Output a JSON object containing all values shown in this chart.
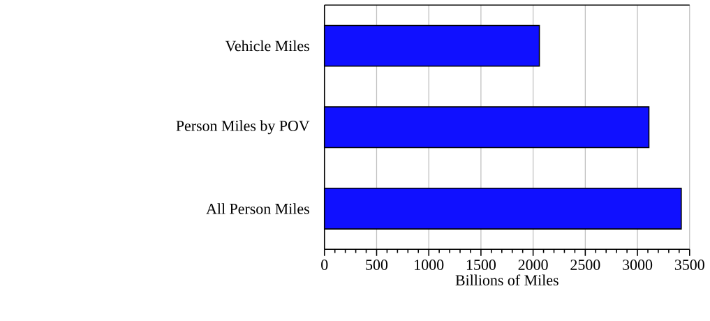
{
  "chart_data": {
    "type": "bar",
    "orientation": "horizontal",
    "categories": [
      "Vehicle Miles",
      "Person Miles by POV",
      "All Person Miles"
    ],
    "values": [
      2060,
      3110,
      3420
    ],
    "color": "#1010ff",
    "xlabel": "Billions of Miles",
    "xlim": [
      0,
      3500
    ],
    "xticks": [
      0,
      500,
      1000,
      1500,
      2000,
      2500,
      3000,
      3500
    ],
    "grid": "x"
  }
}
